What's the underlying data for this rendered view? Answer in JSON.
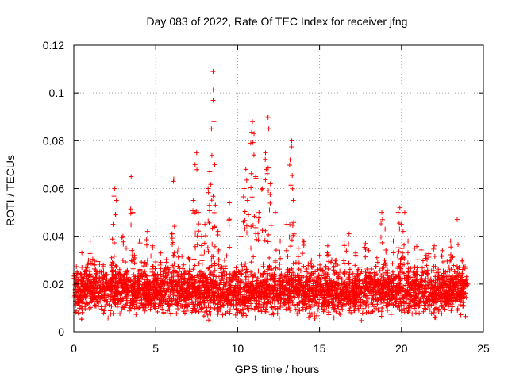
{
  "chart_data": {
    "type": "scatter",
    "title": "Day 083 of 2022, Rate Of TEC Index for receiver jfng",
    "xlabel": "GPS time / hours",
    "ylabel": "ROTI / TECUs",
    "xlim": [
      0,
      25
    ],
    "ylim": [
      0,
      0.12
    ],
    "xticks": [
      0,
      5,
      10,
      15,
      20,
      25
    ],
    "yticks": [
      0,
      0.02,
      0.04,
      0.06,
      0.08,
      0.1,
      0.12
    ],
    "xtick_labels": [
      "0",
      "5",
      "10",
      "15",
      "20",
      "25"
    ],
    "ytick_labels": [
      "0",
      "0.02",
      "0.04",
      "0.06",
      "0.08",
      "0.1",
      "0.12"
    ],
    "grid": true,
    "marker": "plus",
    "color": "#ff0000",
    "series": [
      {
        "name": "ROTI",
        "points": [
          [
            0.1,
            0.015
          ],
          [
            0.2,
            0.025
          ],
          [
            0.3,
            0.012
          ],
          [
            0.5,
            0.02
          ],
          [
            0.7,
            0.018
          ],
          [
            0.9,
            0.03
          ],
          [
            1.0,
            0.038
          ],
          [
            1.2,
            0.022
          ],
          [
            1.5,
            0.016
          ],
          [
            1.8,
            0.028
          ],
          [
            2.0,
            0.02
          ],
          [
            2.3,
            0.031
          ],
          [
            2.4,
            0.045
          ],
          [
            2.5,
            0.06
          ],
          [
            2.6,
            0.055
          ],
          [
            2.8,
            0.026
          ],
          [
            3.0,
            0.04
          ],
          [
            3.2,
            0.035
          ],
          [
            3.5,
            0.065
          ],
          [
            3.6,
            0.05
          ],
          [
            3.7,
            0.032
          ],
          [
            4.0,
            0.038
          ],
          [
            4.3,
            0.029
          ],
          [
            4.5,
            0.042
          ],
          [
            4.8,
            0.036
          ],
          [
            5.0,
            0.024
          ],
          [
            5.3,
            0.033
          ],
          [
            5.6,
            0.027
          ],
          [
            6.0,
            0.041
          ],
          [
            6.1,
            0.064
          ],
          [
            6.4,
            0.035
          ],
          [
            6.7,
            0.028
          ],
          [
            7.0,
            0.031
          ],
          [
            7.3,
            0.055
          ],
          [
            7.4,
            0.07
          ],
          [
            7.5,
            0.075
          ],
          [
            7.6,
            0.05
          ],
          [
            7.8,
            0.04
          ],
          [
            8.0,
            0.045
          ],
          [
            8.2,
            0.06
          ],
          [
            8.3,
            0.067
          ],
          [
            8.4,
            0.085
          ],
          [
            8.5,
            0.109
          ],
          [
            8.55,
            0.088
          ],
          [
            8.6,
            0.07
          ],
          [
            8.8,
            0.042
          ],
          [
            9.2,
            0.03
          ],
          [
            9.5,
            0.054
          ],
          [
            9.8,
            0.025
          ],
          [
            10.2,
            0.04
          ],
          [
            10.4,
            0.06
          ],
          [
            10.5,
            0.068
          ],
          [
            10.6,
            0.055
          ],
          [
            10.8,
            0.079
          ],
          [
            10.9,
            0.088
          ],
          [
            11.0,
            0.083
          ],
          [
            11.1,
            0.065
          ],
          [
            11.3,
            0.05
          ],
          [
            11.5,
            0.06
          ],
          [
            11.7,
            0.075
          ],
          [
            11.8,
            0.09
          ],
          [
            11.9,
            0.085
          ],
          [
            12.0,
            0.062
          ],
          [
            12.3,
            0.05
          ],
          [
            12.6,
            0.038
          ],
          [
            13.0,
            0.045
          ],
          [
            13.2,
            0.072
          ],
          [
            13.3,
            0.08
          ],
          [
            13.4,
            0.055
          ],
          [
            13.7,
            0.035
          ],
          [
            14.0,
            0.038
          ],
          [
            14.5,
            0.03
          ],
          [
            15.0,
            0.032
          ],
          [
            15.5,
            0.036
          ],
          [
            16.0,
            0.03
          ],
          [
            16.5,
            0.038
          ],
          [
            16.8,
            0.041
          ],
          [
            17.2,
            0.033
          ],
          [
            17.8,
            0.037
          ],
          [
            18.0,
            0.034
          ],
          [
            18.5,
            0.031
          ],
          [
            18.8,
            0.05
          ],
          [
            19.0,
            0.043
          ],
          [
            19.5,
            0.038
          ],
          [
            19.8,
            0.05
          ],
          [
            19.9,
            0.052
          ],
          [
            20.0,
            0.045
          ],
          [
            20.1,
            0.042
          ],
          [
            20.2,
            0.05
          ],
          [
            20.4,
            0.038
          ],
          [
            20.8,
            0.035
          ],
          [
            21.5,
            0.032
          ],
          [
            22.0,
            0.036
          ],
          [
            22.5,
            0.034
          ],
          [
            23.0,
            0.038
          ],
          [
            23.4,
            0.047
          ],
          [
            23.7,
            0.03
          ],
          [
            24.0,
            0.02
          ]
        ]
      }
    ],
    "noise_band": {
      "x_from": 0,
      "x_to": 24,
      "y_min": 0.004,
      "y_max": 0.03,
      "count": 4200
    }
  }
}
